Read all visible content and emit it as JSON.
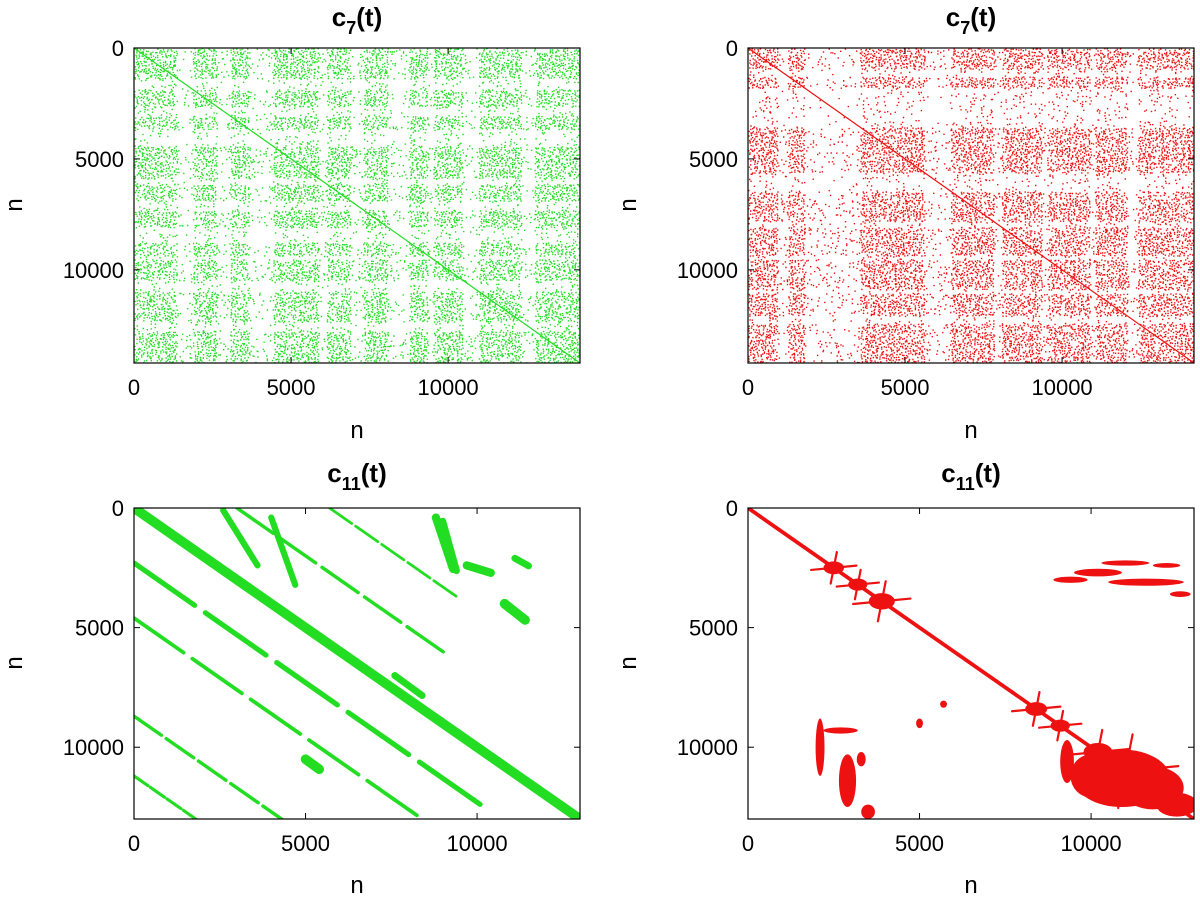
{
  "chart_data": [
    {
      "type": "heatmap",
      "title_main": "c",
      "title_sub": "7",
      "title_tail": "(t)",
      "xlabel": "n",
      "ylabel": "n",
      "xlim": [
        0,
        14200
      ],
      "ylim": [
        0,
        14200
      ],
      "x_ticks": [
        0,
        5000,
        10000
      ],
      "y_ticks": [
        0,
        5000,
        10000
      ],
      "color": "#22dd22",
      "pattern": "dense-grid",
      "band_pairs": [
        [
          0,
          1300
        ],
        [
          1800,
          2600
        ],
        [
          3000,
          3600
        ],
        [
          4400,
          5800
        ],
        [
          6100,
          6800
        ],
        [
          7300,
          8000
        ],
        [
          8700,
          9300
        ],
        [
          9500,
          10400
        ],
        [
          10900,
          12300
        ],
        [
          12700,
          14200
        ]
      ]
    },
    {
      "type": "heatmap",
      "title_main": "c",
      "title_sub": "7",
      "title_tail": "(t)",
      "xlabel": "n",
      "ylabel": "n",
      "xlim": [
        0,
        14200
      ],
      "ylim": [
        0,
        14200
      ],
      "x_ticks": [
        0,
        5000,
        10000
      ],
      "y_ticks": [
        0,
        5000,
        10000
      ],
      "color": "#ee1111",
      "pattern": "dense-grid",
      "band_pairs": [
        [
          0,
          900
        ],
        [
          1200,
          1700
        ],
        [
          3500,
          5600
        ],
        [
          6400,
          7800
        ],
        [
          8000,
          9300
        ],
        [
          9500,
          10800
        ],
        [
          11000,
          12000
        ],
        [
          12400,
          14200
        ]
      ]
    },
    {
      "type": "heatmap",
      "title_main": "c",
      "title_sub": "11",
      "title_tail": "(t)",
      "xlabel": "n",
      "ylabel": "n",
      "xlim": [
        0,
        13000
      ],
      "ylim": [
        0,
        13000
      ],
      "x_ticks": [
        0,
        5000,
        10000
      ],
      "y_ticks": [
        0,
        5000,
        10000
      ],
      "color": "#22dd22",
      "pattern": "stripes",
      "main_width": 280,
      "diagonals": [
        {
          "offset": 2300,
          "x": [
            0,
            10400
          ],
          "w": 150
        },
        {
          "offset": 4600,
          "x": [
            0,
            8500
          ],
          "w": 110
        },
        {
          "offset": 8700,
          "x": [
            0,
            4700
          ],
          "w": 100
        },
        {
          "offset": 11200,
          "x": [
            0,
            2400
          ],
          "w": 90
        },
        {
          "offset": -3000,
          "x": [
            3000,
            9200
          ],
          "w": 100
        },
        {
          "offset": -5700,
          "x": [
            5700,
            9500
          ],
          "w": 80
        }
      ],
      "blobs": [
        [
          2600,
          1000,
          100,
          2100,
          90
        ],
        [
          4000,
          700,
          400,
          3000,
          90
        ],
        [
          8800,
          500,
          400,
          2400,
          120
        ],
        [
          9000,
          400,
          550,
          2500,
          100
        ],
        [
          9700,
          700,
          2400,
          2500,
          120
        ],
        [
          10800,
          600,
          4000,
          4500,
          140
        ],
        [
          11100,
          400,
          2100,
          2300,
          100
        ],
        [
          7600,
          800,
          7000,
          7600,
          100
        ],
        [
          5000,
          400,
          10500,
          10800,
          140
        ]
      ]
    },
    {
      "type": "heatmap",
      "title_main": "c",
      "title_sub": "11",
      "title_tail": "(t)",
      "xlabel": "n",
      "ylabel": "n",
      "xlim": [
        0,
        13000
      ],
      "ylim": [
        0,
        13000
      ],
      "x_ticks": [
        0,
        5000,
        10000
      ],
      "y_ticks": [
        0,
        5000,
        10000
      ],
      "color": "#ee1111",
      "pattern": "diagonal",
      "main_width": 110,
      "nodes": [
        [
          2500,
          2500,
          300
        ],
        [
          3200,
          3200,
          280
        ],
        [
          3900,
          3900,
          380
        ],
        [
          8400,
          8400,
          320
        ],
        [
          9100,
          9100,
          280
        ],
        [
          10200,
          10200,
          420
        ],
        [
          11000,
          11000,
          700
        ]
      ],
      "blobs": [
        [
          10900,
          11300,
          1400,
          1200
        ],
        [
          11800,
          11700,
          900,
          900
        ],
        [
          12500,
          12400,
          600,
          500
        ],
        [
          10000,
          11200,
          600,
          900
        ],
        [
          9300,
          10600,
          200,
          900
        ],
        [
          11600,
          3100,
          1100,
          150
        ],
        [
          10200,
          2700,
          700,
          160
        ],
        [
          9400,
          3000,
          500,
          130
        ],
        [
          12200,
          2400,
          400,
          100
        ],
        [
          11000,
          2300,
          700,
          110
        ],
        [
          12600,
          3600,
          300,
          120
        ],
        [
          2900,
          11400,
          250,
          1100
        ],
        [
          3300,
          10500,
          130,
          300
        ],
        [
          2100,
          10000,
          130,
          1200
        ],
        [
          2700,
          9300,
          500,
          130
        ],
        [
          3500,
          12700,
          200,
          300
        ],
        [
          5000,
          9000,
          100,
          200
        ],
        [
          5700,
          8200,
          100,
          150
        ]
      ]
    }
  ]
}
